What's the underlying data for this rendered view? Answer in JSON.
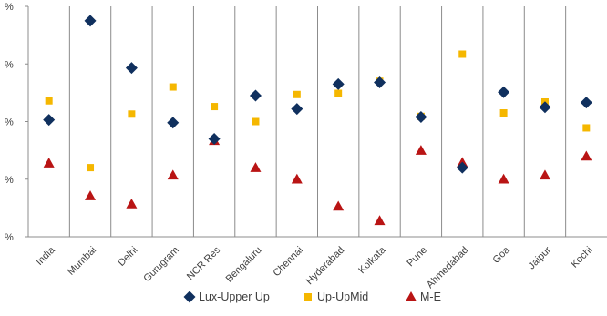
{
  "chart_data": {
    "type": "scatter",
    "categories": [
      "India",
      "Mumbai",
      "Delhi",
      "Gurugram",
      "NCR Res",
      "Bengaluru",
      "Chennai",
      "Hyderabad",
      "Kolkata",
      "Pune",
      "Ahmedabad",
      "Goa",
      "Jaipur",
      "Kochi"
    ],
    "ylim": [
      0,
      4
    ],
    "yticks": [
      0,
      1,
      2,
      3,
      4
    ],
    "y_tick_labels": [
      "%",
      "%",
      "%",
      "%",
      "%"
    ],
    "grid": {
      "x_separators": true,
      "y": false
    },
    "legend_position": "bottom",
    "series": [
      {
        "name": "Lux-Upper Up",
        "marker": "diamond",
        "color": "#10305e",
        "values": [
          2.03,
          3.75,
          2.93,
          1.98,
          1.7,
          2.45,
          2.22,
          2.65,
          2.68,
          2.08,
          1.2,
          2.51,
          2.25,
          2.33
        ]
      },
      {
        "name": "Up-UpMid",
        "marker": "square",
        "color": "#f5b700",
        "values": [
          2.36,
          1.2,
          2.13,
          2.6,
          2.26,
          2.0,
          2.47,
          2.49,
          2.7,
          2.09,
          3.17,
          2.15,
          2.34,
          1.89
        ]
      },
      {
        "name": "M-E",
        "marker": "triangle",
        "color": "#b91414",
        "values": [
          1.28,
          0.71,
          0.57,
          1.07,
          1.67,
          1.2,
          1.0,
          0.53,
          0.28,
          1.5,
          1.29,
          1.0,
          1.07,
          1.4
        ]
      }
    ]
  }
}
